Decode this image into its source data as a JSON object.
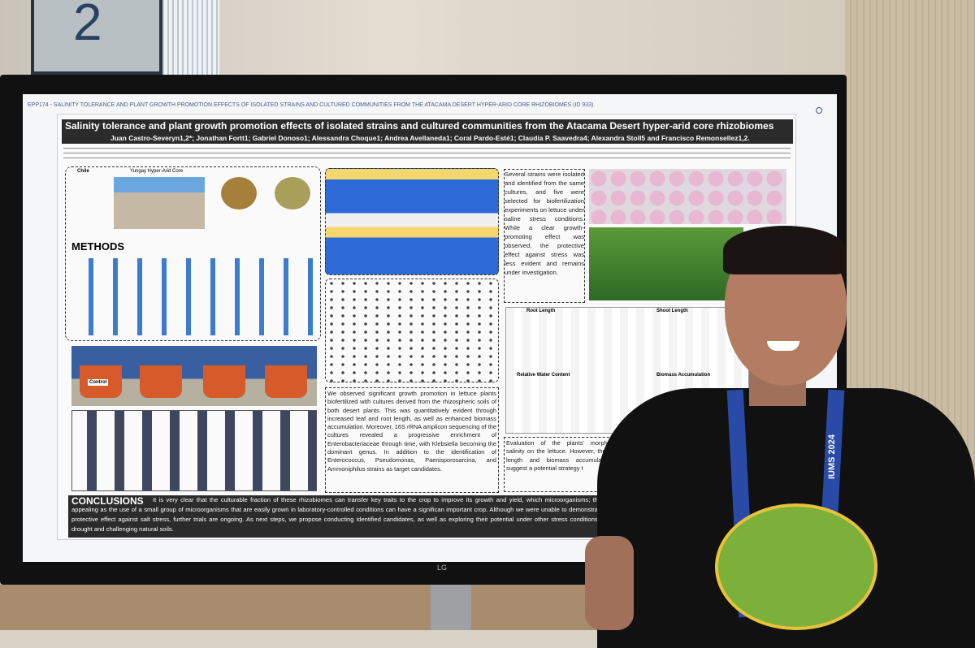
{
  "room": {
    "sign_number": "2"
  },
  "screen": {
    "header": "EPP174 - SALINITY TOLERANCE AND PLANT GROWTH PROMOTION EFFECTS OF ISOLATED STRAINS AND CULTURED COMMUNITIES FROM THE ATACAMA DESERT HYPER-ARID CORE RHIZOBIOMES (ID 933)",
    "brand": "LG"
  },
  "poster": {
    "title": "Salinity tolerance and plant growth promotion effects of isolated strains and cultured communities  from the Atacama Desert hyper-arid core rhizobiomes",
    "authors": "Juan Castro-Severyn1,2*; Jonathan Fortt1; Gabriel Donoso1; Alessandra Choque1; Andrea Avellaneda1; Coral Pardo-Esté1; Claudia P. Saavedra4; Alexandra Stoll5 and Francisco Remonsellez1,2.",
    "site_labels": [
      "Chile",
      "Yungay Hyper-Arid Core"
    ],
    "methods": "METHODS",
    "pot_label": "Control",
    "results_right": "Several strains were isolated and identified from the same cultures, and five were selected for biofertilization experiments on lettuce under saline stress conditions. While a clear growth-promoting effect was observed, the protective effect against stress was less evident and remains under investigation.",
    "results_middle": "We observed significant growth promotion in lettuce plants biofertilized with cultures derived from the rhizospheric soils of both desert plants. This was quantitatively evident through increased leaf and root length, as well as enhanced biomass accumulation. Moreover, 16S rRNA amplicon sequencing of the cultures revealed a progressive enrichment of Enterobacteriaceae through time, with Klebsiella becoming the dominant genus. In addition to the identification of Enterococcus, Pseudomonas, Paenisporosarcina, and Ammoniphilus strains as target candidates.",
    "results_partial": "Evaluation of the plants' morphologic salinity on the lettuce. However, the shoot length and biomass accumula might suggest a potential strategy t",
    "panel_titles": [
      "Root Length",
      "Shoot Length",
      "Relative Water Content",
      "Biomass Accumulation"
    ],
    "conclusions_heading": "CONCLUSIONS",
    "conclusions": "It is very clear that the culturable fraction of these rhizobiomes can transfer key traits to the crop to improve its growth and yield, which microorganisms; this is very appealing as the use of a small group of microorganisms that are easily grown in laboratory-controlled conditions can have a significan important crop. Although we were unable to demonstrate a clear protective effect against salt stress, further trials are ongoing. As next steps, we propose conducting identified candidates, as well as exploring their potential under other stress conditions, such as drought and challenging natural soils."
  },
  "lanyard": "IUMS 2024"
}
